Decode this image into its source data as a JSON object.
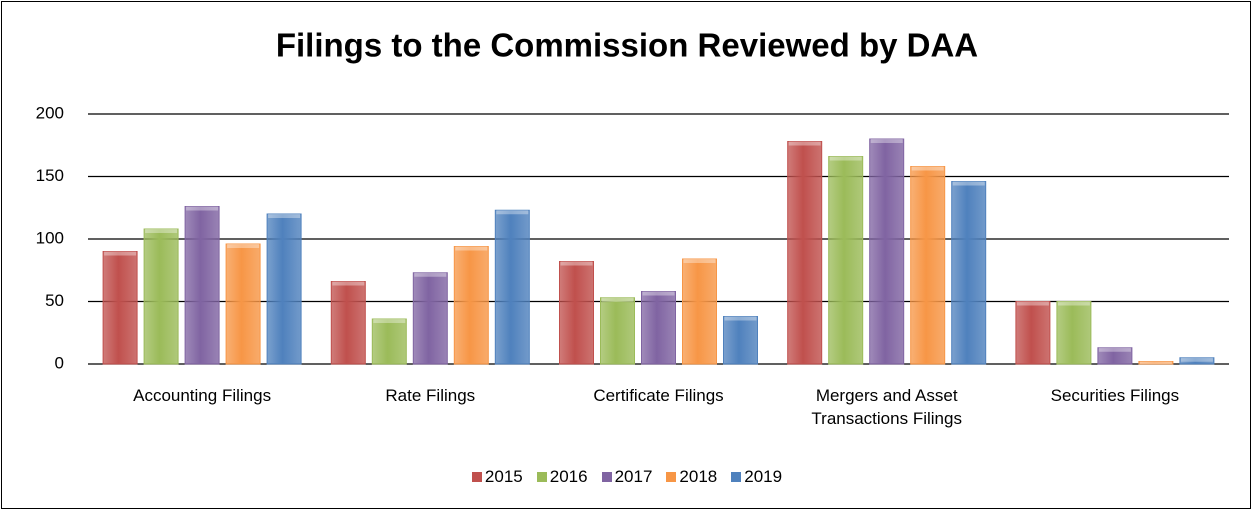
{
  "chart_data": {
    "type": "bar",
    "title": "Filings to the Commission Reviewed by DAA",
    "categories": [
      "Accounting Filings",
      "Rate Filings",
      "Certificate Filings",
      "Mergers and Asset Transactions Filings",
      "Securities Filings"
    ],
    "series": [
      {
        "name": "2015",
        "color": "#c0504d",
        "values": [
          90,
          66,
          82,
          178,
          50
        ]
      },
      {
        "name": "2016",
        "color": "#9bbb59",
        "values": [
          108,
          36,
          53,
          166,
          50
        ]
      },
      {
        "name": "2017",
        "color": "#8064a2",
        "values": [
          126,
          73,
          58,
          180,
          13
        ]
      },
      {
        "name": "2018",
        "color": "#f79646",
        "values": [
          96,
          94,
          84,
          158,
          2
        ]
      },
      {
        "name": "2019",
        "color": "#4f81bd",
        "values": [
          120,
          123,
          38,
          146,
          5
        ]
      }
    ],
    "ylim": [
      0,
      200
    ],
    "yticks": [
      0,
      50,
      100,
      150,
      200
    ],
    "grid": true,
    "legend": "bottom"
  }
}
